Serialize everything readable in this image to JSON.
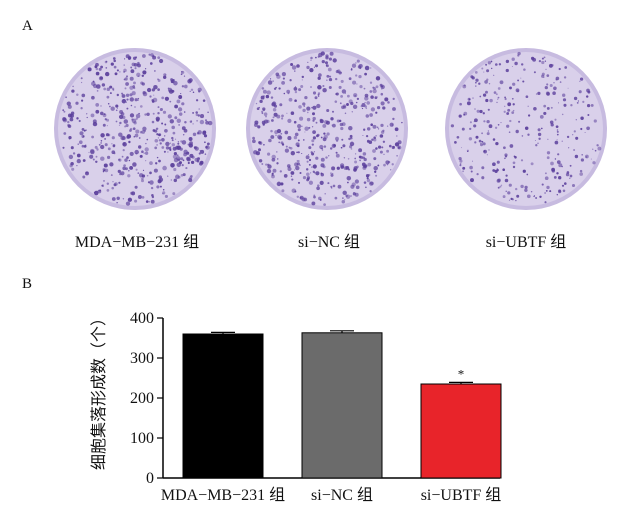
{
  "figure": {
    "panel_a_label": "A",
    "panel_b_label": "B",
    "plates": [
      {
        "label": "MDA−MB−231 组",
        "density": 1.0
      },
      {
        "label": "si−NC 组",
        "density": 0.95
      },
      {
        "label": "si−UBTF 组",
        "density": 0.6
      }
    ]
  },
  "colors": {
    "plate_bg": "#d9d0ea",
    "plate_rim": "#c7bbe0",
    "colony": "#5b3f9c",
    "bar_black": "#000000",
    "bar_gray": "#6b6b6b",
    "bar_red": "#e8242a"
  },
  "chart_data": {
    "type": "bar",
    "categories": [
      "MDA−MB−231 组",
      "si−NC 组",
      "si−UBTF 组"
    ],
    "values": [
      360,
      363,
      235
    ],
    "errors": [
      4,
      5,
      4
    ],
    "significance": [
      "",
      "",
      "*"
    ],
    "ylabel": "细胞集落形成数（个）",
    "ylim": [
      0,
      400
    ],
    "yticks": [
      0,
      100,
      200,
      300,
      400
    ],
    "grid": false
  }
}
